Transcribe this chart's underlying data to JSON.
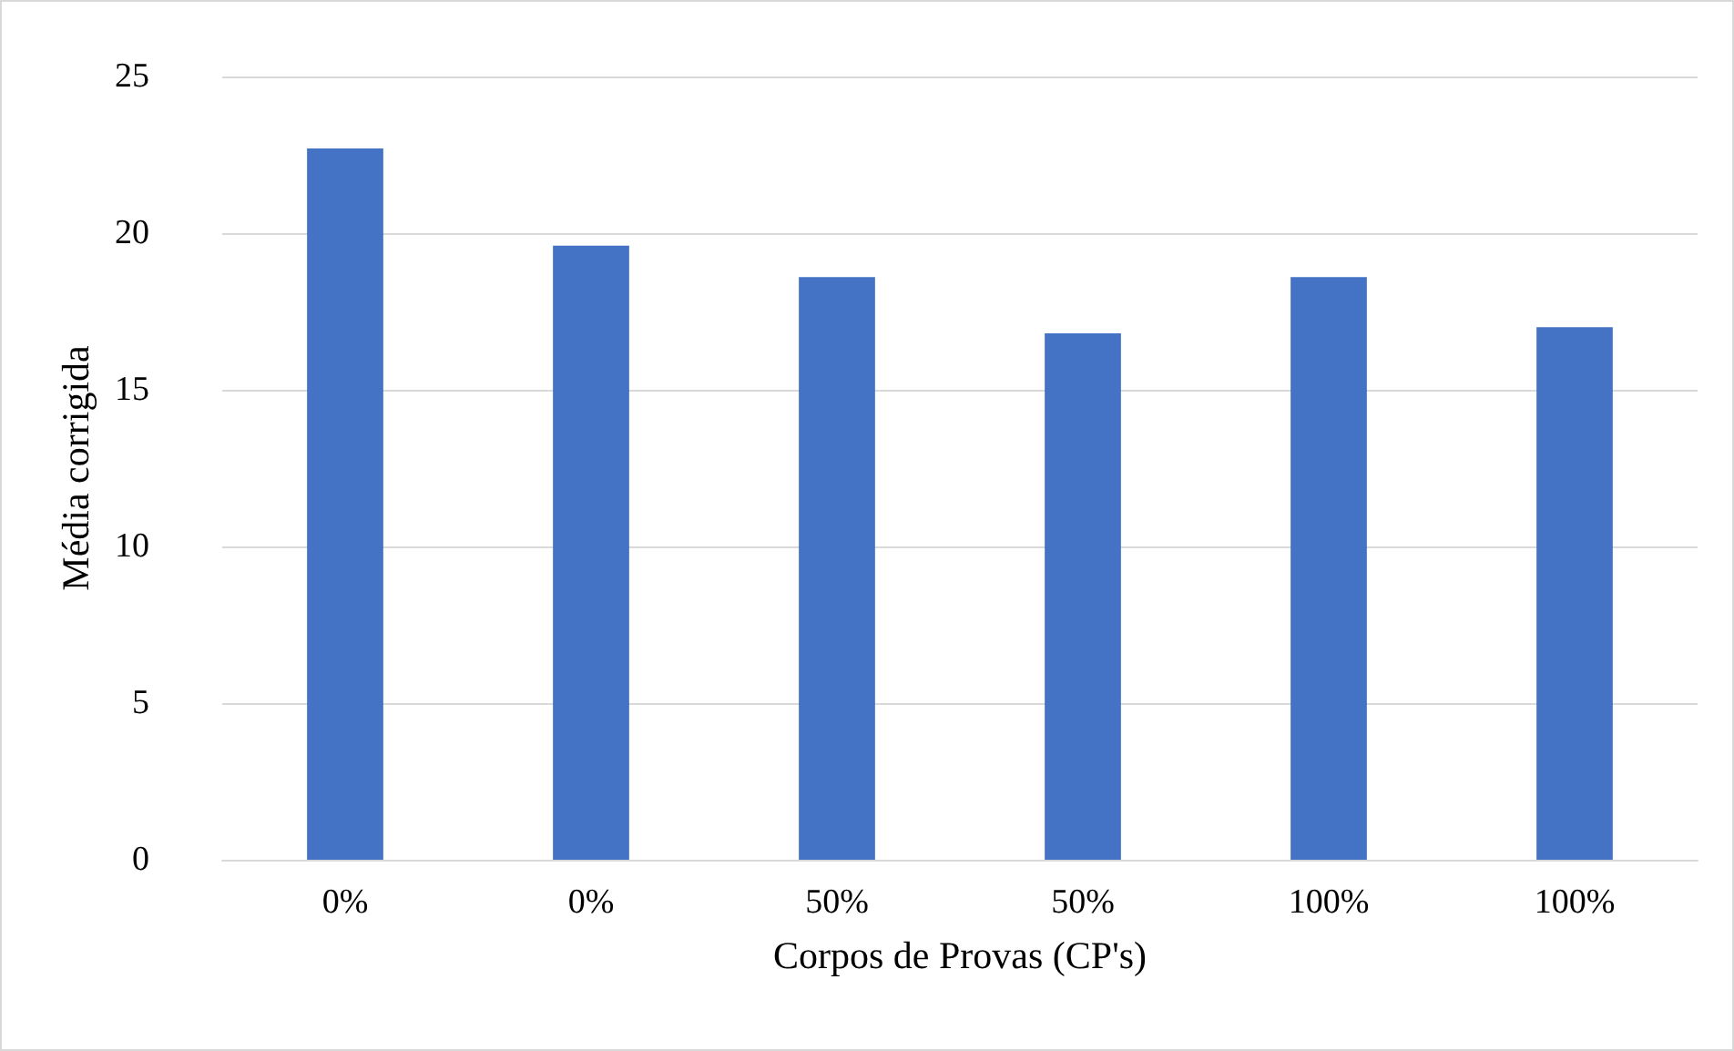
{
  "chart_data": {
    "type": "bar",
    "xlabel": "Corpos de Provas (CP's)",
    "ylabel": "Média corrigida",
    "categories": [
      "0%",
      "0%",
      "50%",
      "50%",
      "100%",
      "100%"
    ],
    "values": [
      22.7,
      19.6,
      18.6,
      16.8,
      18.6,
      17.0
    ],
    "color": "#4472c4",
    "ylim": [
      0,
      25
    ],
    "yticks": [
      0,
      5,
      10,
      15,
      20,
      25
    ],
    "grid": "y"
  }
}
